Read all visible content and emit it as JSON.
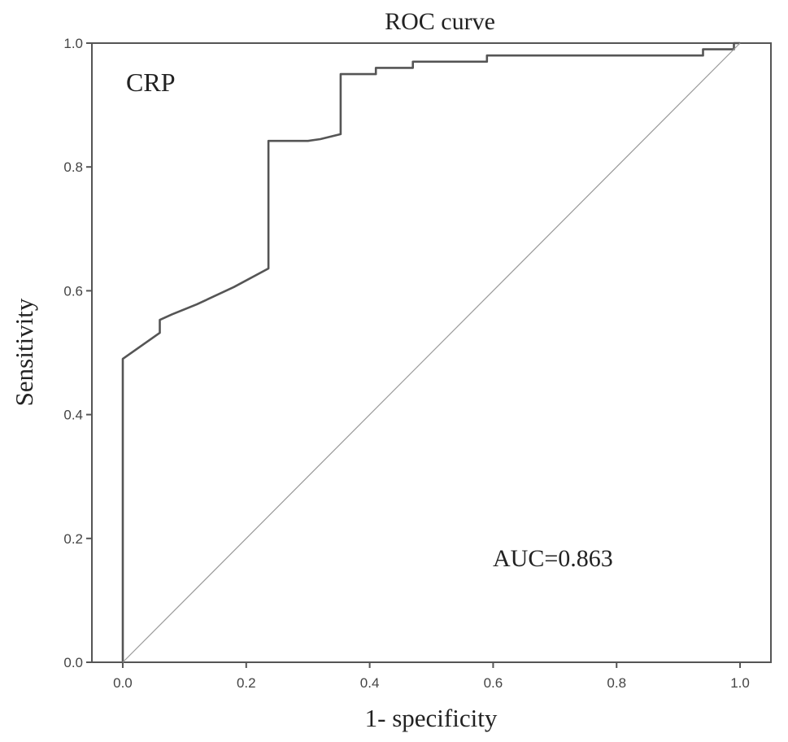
{
  "chart_data": {
    "type": "line",
    "title": "ROC curve",
    "xlabel": "1- specificity",
    "ylabel": "Sensitivity",
    "xlim": [
      -0.05,
      1.05
    ],
    "ylim": [
      0.0,
      1.0
    ],
    "xticks": [
      "0.0",
      "0.2",
      "0.4",
      "0.6",
      "0.8",
      "1.0"
    ],
    "yticks": [
      "0.0",
      "0.2",
      "0.4",
      "0.6",
      "0.8",
      "1.0"
    ],
    "grid": false,
    "annotations": {
      "label": "CRP",
      "auc": "AUC=0.863"
    },
    "series": [
      {
        "color": "#555555",
        "x": [
          0.0,
          0.0,
          0.06,
          0.06,
          0.08,
          0.12,
          0.18,
          0.236,
          0.236,
          0.3,
          0.32,
          0.353,
          0.353,
          0.41,
          0.41,
          0.47,
          0.47,
          0.59,
          0.59,
          0.94,
          0.94,
          0.99,
          0.99,
          1.0
        ],
        "y": [
          0.0,
          0.49,
          0.532,
          0.553,
          0.562,
          0.578,
          0.606,
          0.636,
          0.842,
          0.842,
          0.845,
          0.853,
          0.95,
          0.95,
          0.96,
          0.96,
          0.97,
          0.97,
          0.98,
          0.98,
          0.99,
          0.99,
          1.0,
          1.0
        ]
      },
      {
        "color": "#999999",
        "x": [
          0.0,
          1.0
        ],
        "y": [
          0.0,
          1.0
        ]
      }
    ]
  }
}
